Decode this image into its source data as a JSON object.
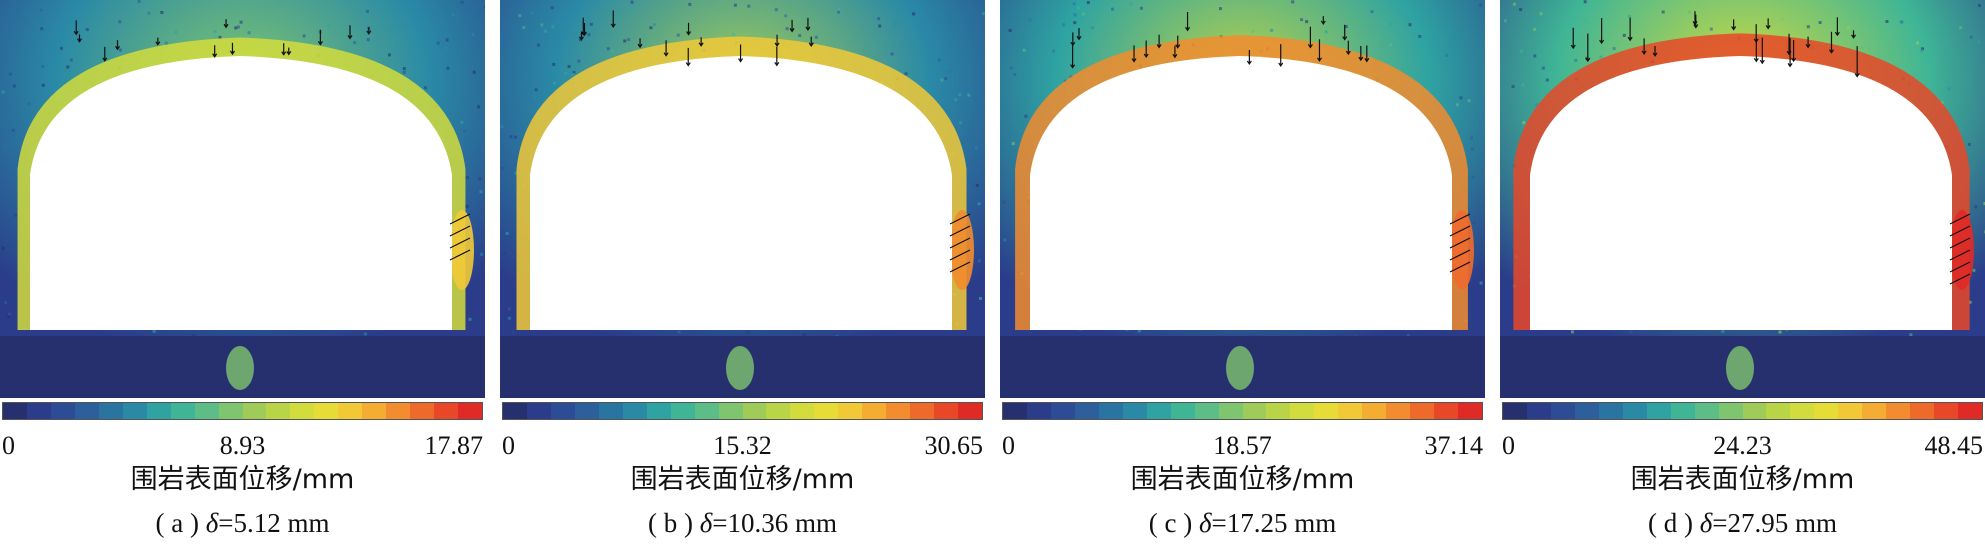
{
  "colorbar": {
    "colors": [
      "#27306e",
      "#2a3c8a",
      "#2d4c96",
      "#2c5f9c",
      "#2a74a2",
      "#2a8aa6",
      "#2ea3a2",
      "#3fb596",
      "#5cbd86",
      "#7fc56f",
      "#9fcc58",
      "#bad447",
      "#d2dc3c",
      "#e6dc38",
      "#f1c937",
      "#f4ac33",
      "#f28c2e",
      "#ee6a2b",
      "#e84828",
      "#e02a26"
    ]
  },
  "axis_label": "围岩表面位移/mm",
  "panels": [
    {
      "tick_min": "0",
      "tick_mid": "8.93",
      "tick_max": "17.87",
      "caption_prefix": "( a ) ",
      "caption_symbol": "δ",
      "caption_value": "=5.12 mm",
      "level": 0.35
    },
    {
      "tick_min": "0",
      "tick_mid": "15.32",
      "tick_max": "30.65",
      "caption_prefix": "( b ) ",
      "caption_symbol": "δ",
      "caption_value": "=10.36 mm",
      "level": 0.5
    },
    {
      "tick_min": "0",
      "tick_mid": "18.57",
      "tick_max": "37.14",
      "caption_prefix": "( c ) ",
      "caption_symbol": "δ",
      "caption_value": "=17.25 mm",
      "level": 0.7
    },
    {
      "tick_min": "0",
      "tick_mid": "24.23",
      "tick_max": "48.45",
      "caption_prefix": "( d ) ",
      "caption_symbol": "δ",
      "caption_value": "=27.95 mm",
      "level": 0.95
    }
  ]
}
